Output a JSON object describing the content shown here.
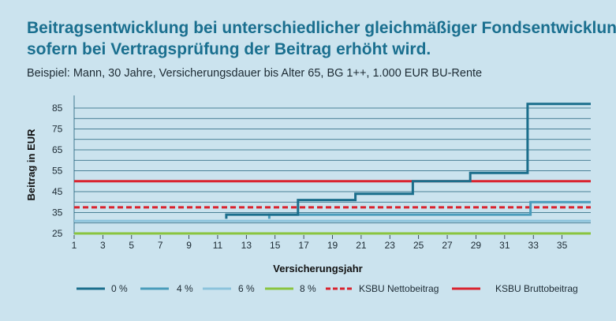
{
  "header": {
    "title_line1": "Beitragsentwicklung bei unterschiedlicher gleichmäßiger Fondsentwicklung,",
    "title_line2": "sofern bei Vertragsprüfung der Beitrag erhöht wird.",
    "subtitle": "Beispiel: Mann, 30 Jahre, Versicherungsdauer bis Alter 65, BG 1++, 1.000 EUR BU-Rente"
  },
  "chart_data": {
    "type": "line",
    "title": "Beitragsentwicklung bei unterschiedlicher gleichmäßiger Fondsentwicklung, sofern bei Vertragsprüfung der Beitrag erhöht wird.",
    "xlabel": "Versicherungsjahr",
    "ylabel": "Beitrag in EUR",
    "xlim": [
      1,
      37
    ],
    "ylim": [
      25,
      85
    ],
    "x_ticks": [
      1,
      3,
      5,
      7,
      9,
      11,
      13,
      15,
      17,
      19,
      21,
      23,
      25,
      27,
      29,
      31,
      33,
      35
    ],
    "y_ticks": [
      25,
      35,
      45,
      55,
      65,
      75,
      85
    ],
    "grid": true,
    "legend_position": "bottom",
    "series": [
      {
        "name": "0 %",
        "color": "#1b6e8c",
        "style": "step",
        "points": [
          [
            11.6,
            32
          ],
          [
            11.6,
            34
          ],
          [
            16.6,
            34
          ],
          [
            16.6,
            41
          ],
          [
            20.6,
            41
          ],
          [
            20.6,
            44
          ],
          [
            24.6,
            44
          ],
          [
            24.6,
            50
          ],
          [
            28.6,
            50
          ],
          [
            28.6,
            54
          ],
          [
            32.6,
            54
          ],
          [
            32.6,
            87
          ],
          [
            37,
            87
          ]
        ]
      },
      {
        "name": "4 %",
        "color": "#4a9cbb",
        "style": "step",
        "points": [
          [
            14.6,
            32
          ],
          [
            14.6,
            34
          ],
          [
            32.8,
            34
          ],
          [
            32.8,
            40
          ],
          [
            37,
            40
          ]
        ]
      },
      {
        "name": "6 %",
        "color": "#8cc3dc",
        "style": "step",
        "points": [
          [
            1,
            31
          ],
          [
            37,
            31
          ]
        ]
      },
      {
        "name": "8 %",
        "color": "#8ac43f",
        "style": "step",
        "points": [
          [
            1,
            25
          ],
          [
            37,
            25
          ]
        ]
      },
      {
        "name": "KSBU Nettobeitrag",
        "color": "#d9232e",
        "style": "dashed",
        "points": [
          [
            1,
            37.5
          ],
          [
            37,
            37.5
          ]
        ]
      },
      {
        "name": "KSBU Bruttobeitrag",
        "color": "#d9232e",
        "style": "solid",
        "points": [
          [
            1,
            50
          ],
          [
            37,
            50
          ]
        ]
      }
    ]
  }
}
